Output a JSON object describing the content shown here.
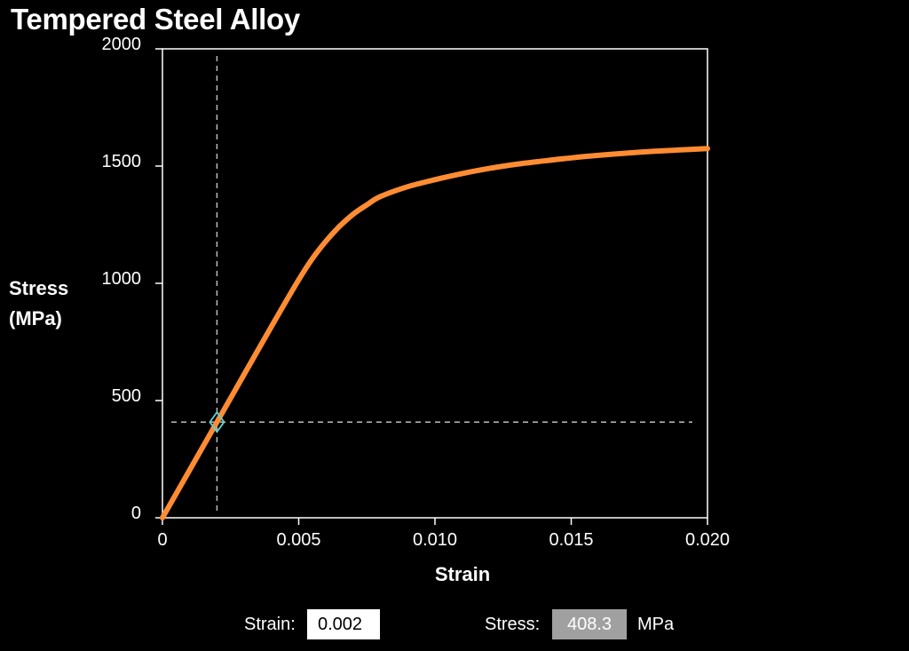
{
  "title": "Tempered Steel Alloy",
  "colors": {
    "background": "#000000",
    "curve": "#ff8c32",
    "marker": "#5fd3d3",
    "crosshair": "#bdbdbd",
    "axis": "#ffffff",
    "output_bg": "#a0a0a0"
  },
  "chart_data": {
    "type": "line",
    "title": "Tempered Steel Alloy",
    "xlabel": "Strain",
    "ylabel_lines": [
      "Stress",
      "(MPa)"
    ],
    "xlim": [
      0,
      0.02
    ],
    "ylim": [
      0,
      2000
    ],
    "xticks": [
      0,
      0.005,
      0.01,
      0.015,
      0.02
    ],
    "xtick_labels": [
      "0",
      "0.005",
      "0.010",
      "0.015",
      "0.020"
    ],
    "yticks": [
      0,
      500,
      1000,
      1500,
      2000
    ],
    "ytick_labels": [
      "0",
      "500",
      "1000",
      "1500",
      "2000"
    ],
    "grid": false,
    "series": [
      {
        "x": [
          0,
          0.001,
          0.002,
          0.003,
          0.004,
          0.005,
          0.0055,
          0.006,
          0.0065,
          0.007,
          0.0075,
          0.008,
          0.009,
          0.01,
          0.011,
          0.012,
          0.013,
          0.014,
          0.015,
          0.016,
          0.017,
          0.018,
          0.019,
          0.02
        ],
        "y": [
          0,
          204,
          408,
          612,
          816,
          1015,
          1105,
          1180,
          1243,
          1295,
          1335,
          1370,
          1412,
          1442,
          1468,
          1490,
          1508,
          1522,
          1535,
          1546,
          1555,
          1563,
          1569,
          1575
        ]
      }
    ],
    "marker": {
      "x": 0.002,
      "y": 408.3
    }
  },
  "controls": {
    "strain_label": "Strain:",
    "strain_value": "0.002",
    "stress_label": "Stress:",
    "stress_value": "408.3",
    "stress_unit": "MPa"
  }
}
